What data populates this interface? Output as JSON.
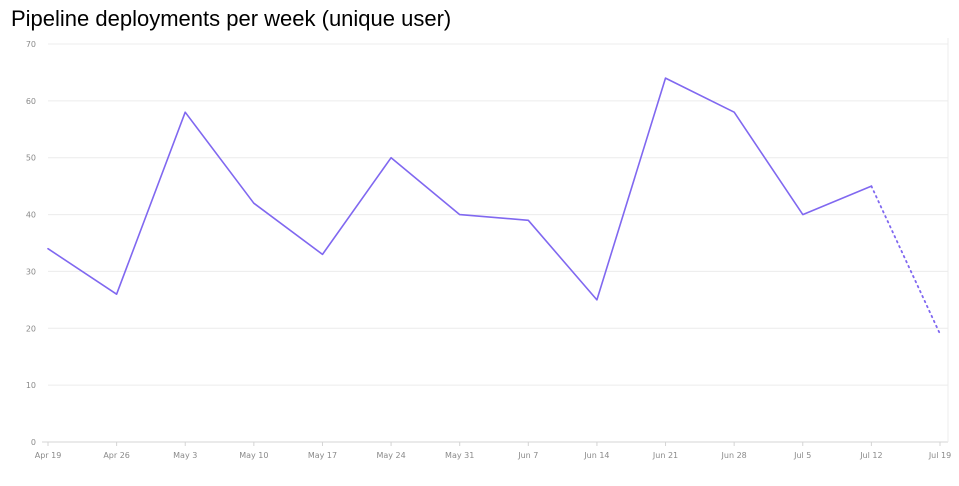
{
  "chart_data": {
    "type": "line",
    "title": "Pipeline deployments per week (unique user)",
    "xlabel": "",
    "ylabel": "",
    "categories": [
      "Apr 19",
      "Apr 26",
      "May 3",
      "May 10",
      "May 17",
      "May 24",
      "May 31",
      "Jun 7",
      "Jun 14",
      "Jun 21",
      "Jun 28",
      "Jul 5",
      "Jul 12",
      "Jul 19"
    ],
    "series": [
      {
        "values": [
          34,
          26,
          58,
          42,
          33,
          50,
          40,
          39,
          25,
          64,
          58,
          40,
          45,
          19
        ]
      }
    ],
    "incomplete_last_point": true,
    "ylim": [
      0,
      70
    ],
    "yticks": [
      0,
      10,
      20,
      30,
      40,
      50,
      60,
      70
    ],
    "grid": true,
    "legend": "none",
    "colors": {
      "line": "#8068f0",
      "grid": "#ececec",
      "axis": "#d4d4d4",
      "tick_text": "#8a8a8a"
    }
  }
}
